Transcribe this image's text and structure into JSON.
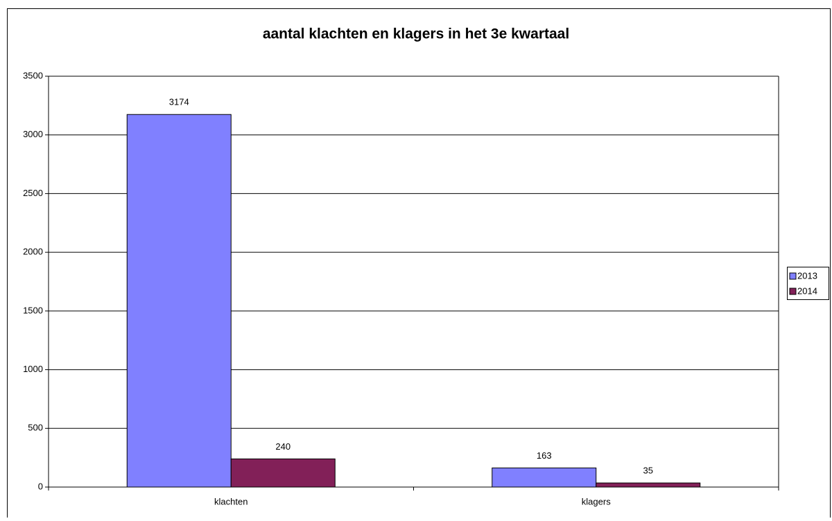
{
  "chart_data": {
    "type": "bar",
    "title": "aantal klachten en klagers in het 3e kwartaal",
    "categories": [
      "klachten",
      "klagers"
    ],
    "series": [
      {
        "name": "2013",
        "color": "#8080ff",
        "values": [
          3174,
          163
        ]
      },
      {
        "name": "2014",
        "color": "#822058",
        "values": [
          240,
          35
        ]
      }
    ],
    "ylim": [
      0,
      3500
    ],
    "yticks": [
      0,
      500,
      1000,
      1500,
      2000,
      2500,
      3000,
      3500
    ],
    "grid": true,
    "legend": "right"
  }
}
